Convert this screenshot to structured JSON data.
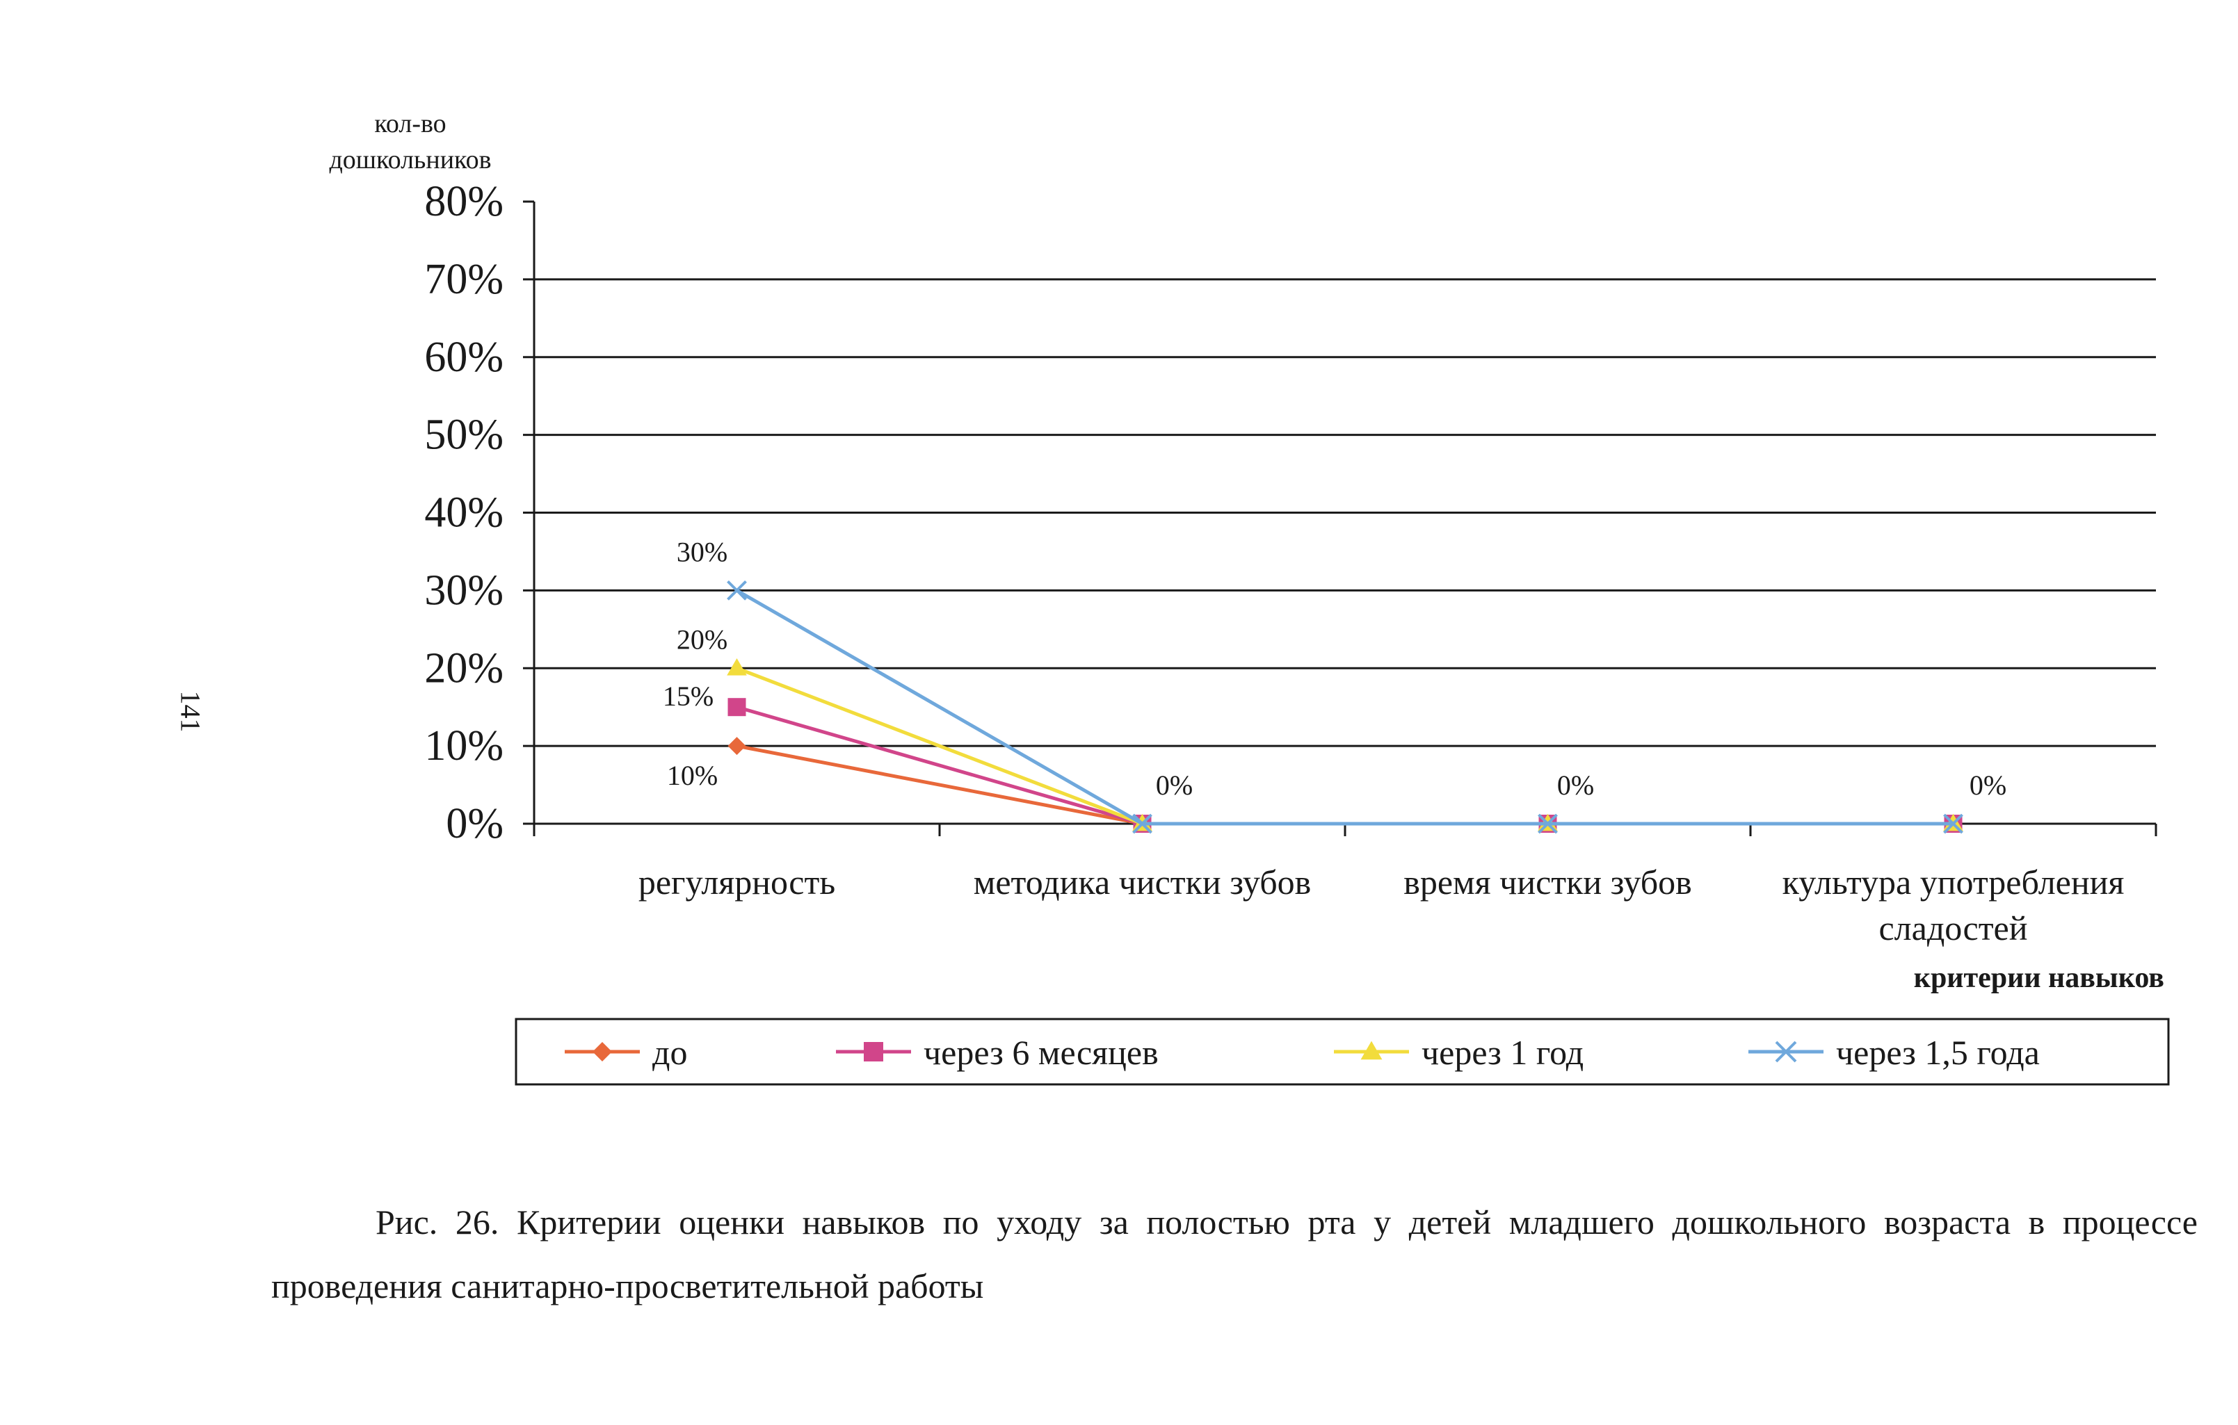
{
  "page": {
    "page_number": "141",
    "caption": "Рис. 26. Критерии оценки навыков по уходу за полостью рта у детей младшего дошкольного возраста в процессе проведения санитарно-просветительной работы"
  },
  "colors": {
    "grid": "#1a1a1a",
    "series": [
      "#e8683a",
      "#d1458a",
      "#f2dc3c",
      "#6fa8dc"
    ]
  },
  "chart_data": {
    "type": "line",
    "ylabel_lines": [
      "кол-во",
      "дошкольников"
    ],
    "xlabel": "критерии навыков",
    "categories": [
      [
        "регулярность"
      ],
      [
        "методика чистки зубов"
      ],
      [
        "время чистки зубов"
      ],
      [
        "культура употребления",
        "сладостей"
      ]
    ],
    "ylim": [
      0,
      80
    ],
    "yticks": [
      0,
      10,
      20,
      30,
      40,
      50,
      60,
      70,
      80
    ],
    "ytick_labels": [
      "0%",
      "10%",
      "20%",
      "30%",
      "40%",
      "50%",
      "60%",
      "70%",
      "80%"
    ],
    "grid": true,
    "legend_position": "bottom",
    "series": [
      {
        "name": "до",
        "values": [
          10,
          0,
          0,
          0
        ],
        "marker": "diamond",
        "color": "#e8683a"
      },
      {
        "name": "через 6 месяцев",
        "values": [
          15,
          0,
          0,
          0
        ],
        "marker": "square",
        "color": "#d1458a"
      },
      {
        "name": "через 1 год",
        "values": [
          20,
          0,
          0,
          0
        ],
        "marker": "triangle",
        "color": "#f2dc3c"
      },
      {
        "name": "через 1,5 года",
        "values": [
          30,
          0,
          0,
          0
        ],
        "marker": "cross",
        "color": "#6fa8dc"
      }
    ],
    "data_labels": [
      {
        "category": 0,
        "value": 30,
        "text": "30%"
      },
      {
        "category": 0,
        "value": 20,
        "text": "20%"
      },
      {
        "category": 0,
        "value": 15,
        "text": "15%"
      },
      {
        "category": 0,
        "value": 10,
        "text": "10%"
      },
      {
        "category": 1,
        "value": 0,
        "text": "0%"
      },
      {
        "category": 2,
        "value": 0,
        "text": "0%"
      },
      {
        "category": 3,
        "value": 0,
        "text": "0%"
      }
    ]
  }
}
